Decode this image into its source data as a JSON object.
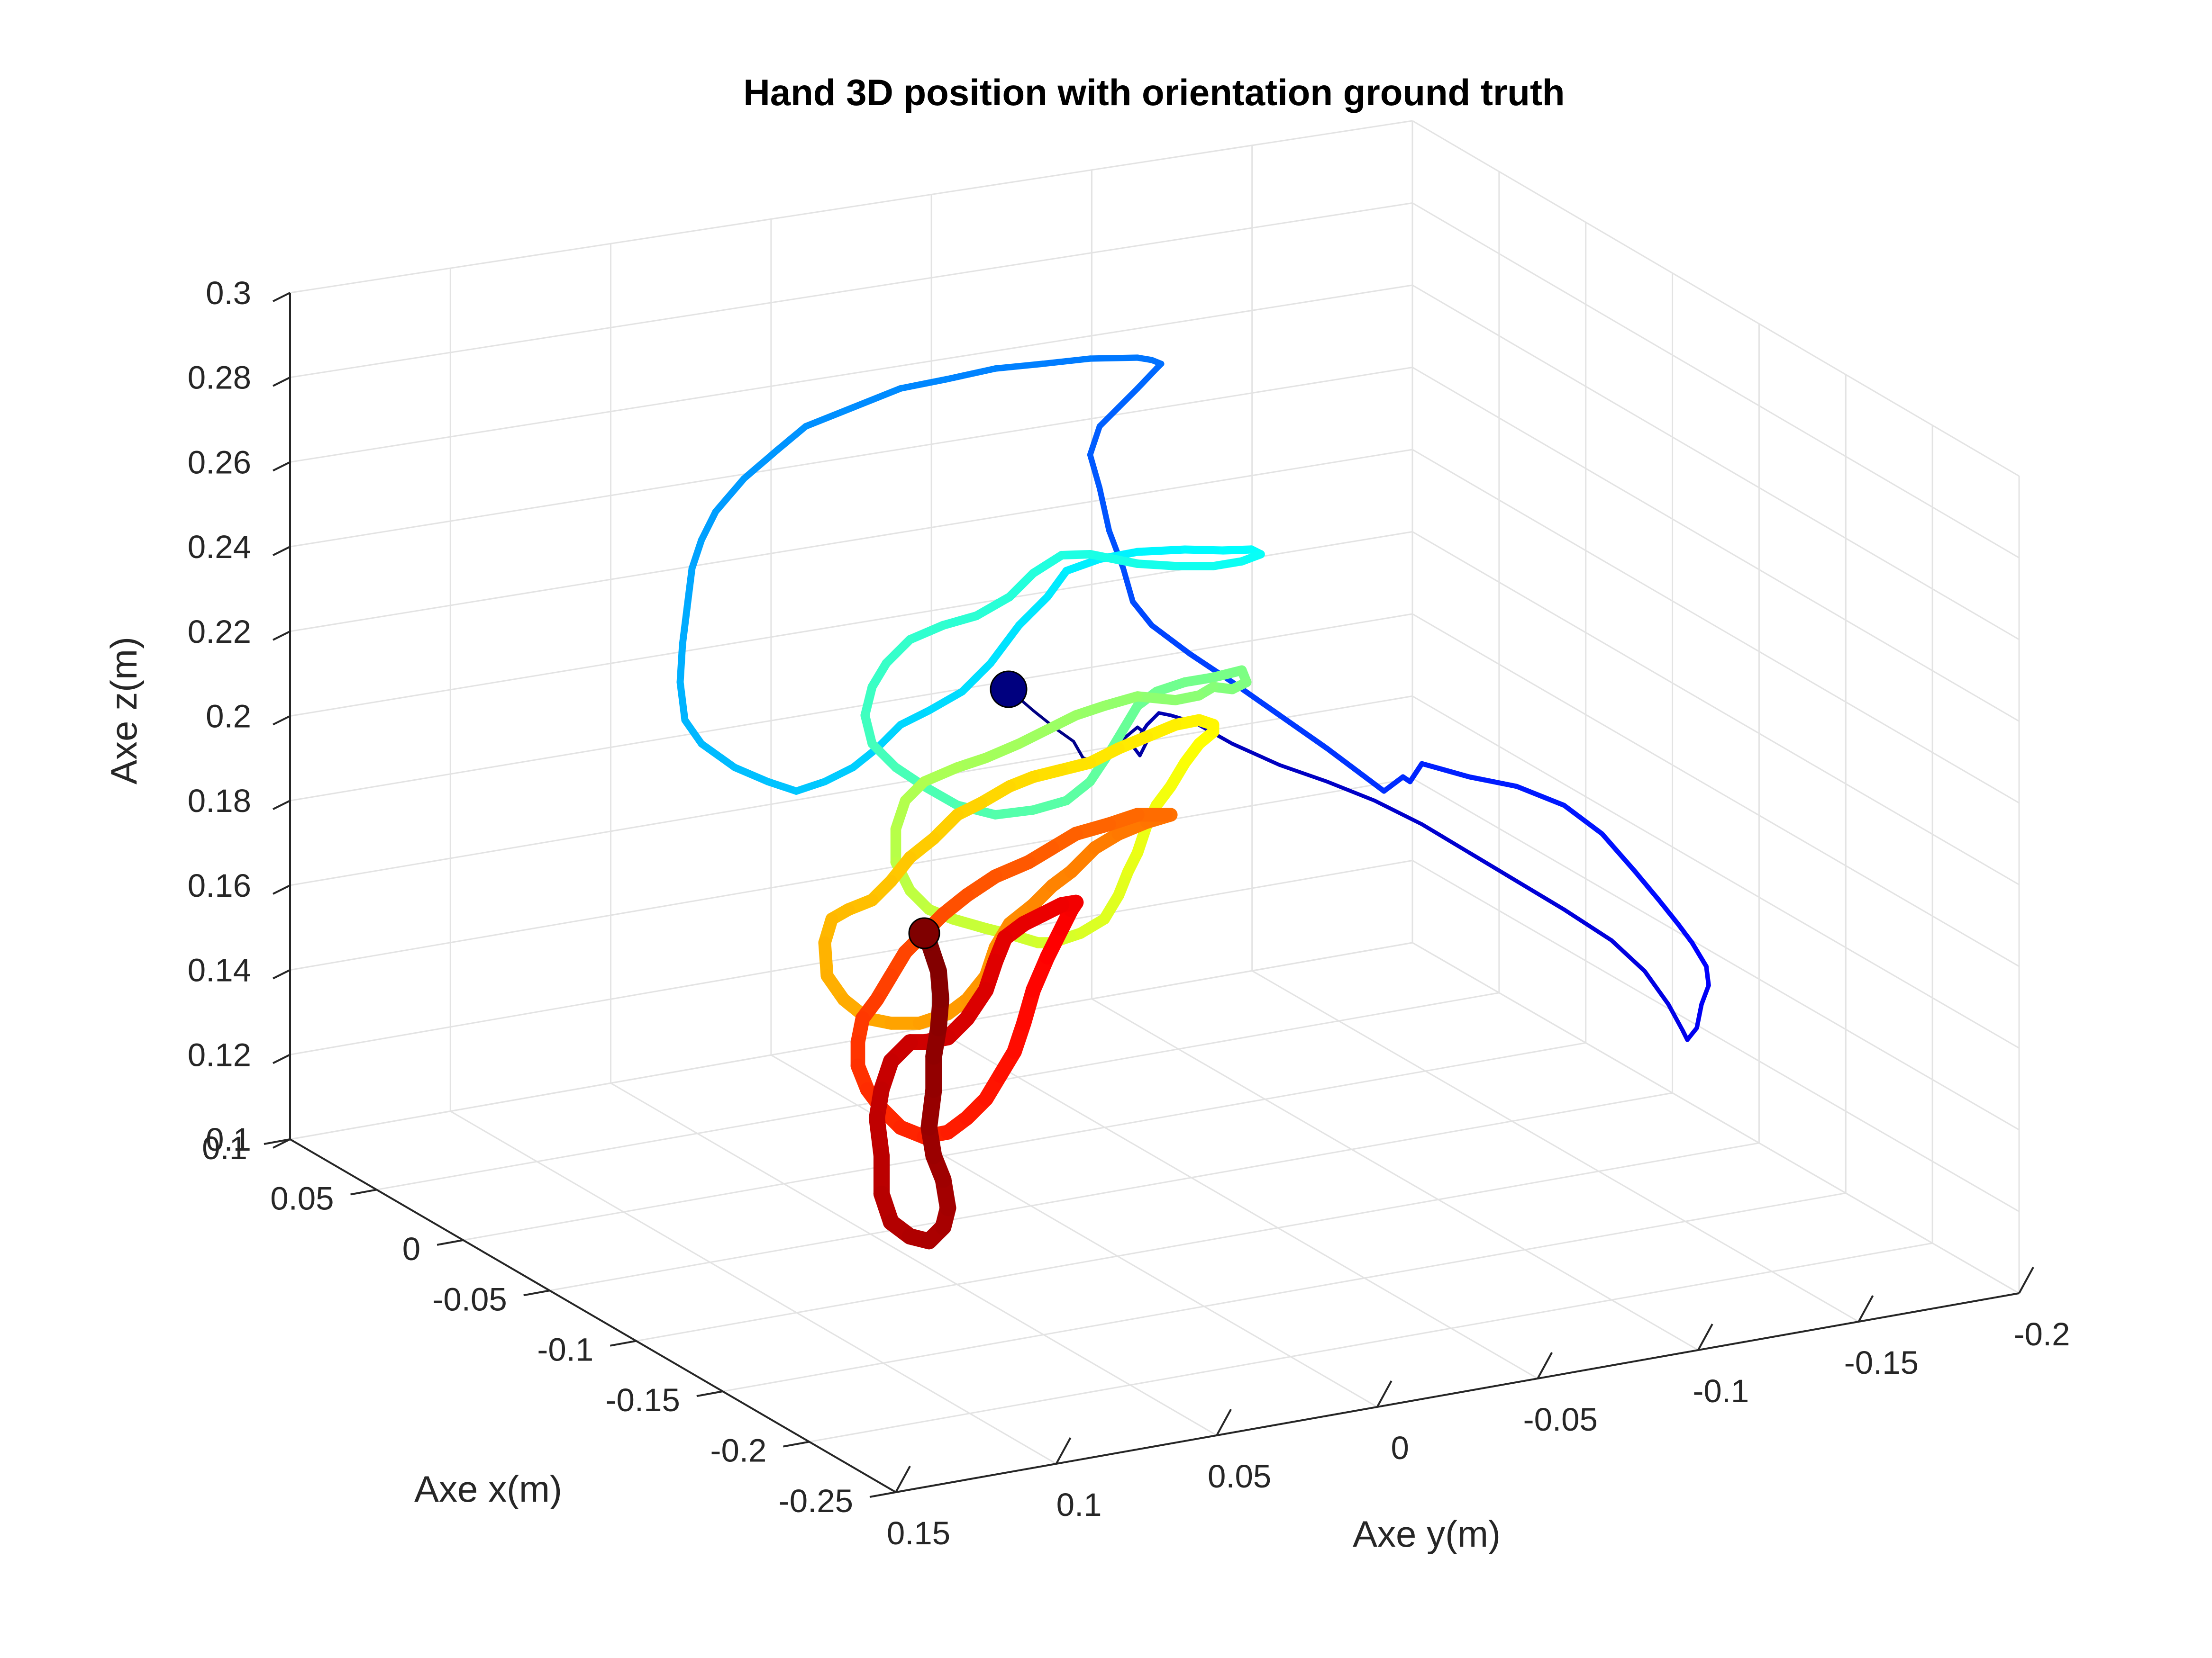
{
  "chart_data": {
    "type": "line3d",
    "title": "Hand 3D position with orientation ground truth",
    "xlabel": "Axe x(m)",
    "ylabel": "Axe y(m)",
    "zlabel": "Axe z(m)",
    "xlim": [
      -0.25,
      0.1
    ],
    "ylim": [
      -0.2,
      0.15
    ],
    "zlim": [
      0.1,
      0.3
    ],
    "x_ticks": [
      "-0.25",
      "-0.2",
      "-0.15",
      "-0.1",
      "-0.05",
      "0",
      "0.05",
      "0.1"
    ],
    "y_ticks": [
      "-0.2",
      "-0.15",
      "-0.1",
      "-0.05",
      "0",
      "0.05",
      "0.1",
      "0.15"
    ],
    "z_ticks": [
      "0.1",
      "0.12",
      "0.14",
      "0.16",
      "0.18",
      "0.2",
      "0.22",
      "0.24",
      "0.26",
      "0.28",
      "0.3"
    ],
    "grid": true,
    "colormap": "jet",
    "start_marker_color": "#00007f",
    "end_marker_color": "#7f0000",
    "trajectory_color_start": "#00008f",
    "trajectory_color_end": "#800000",
    "trajectory_approx_order": "screen-projected samples, start (dark blue) to end (dark red)"
  }
}
